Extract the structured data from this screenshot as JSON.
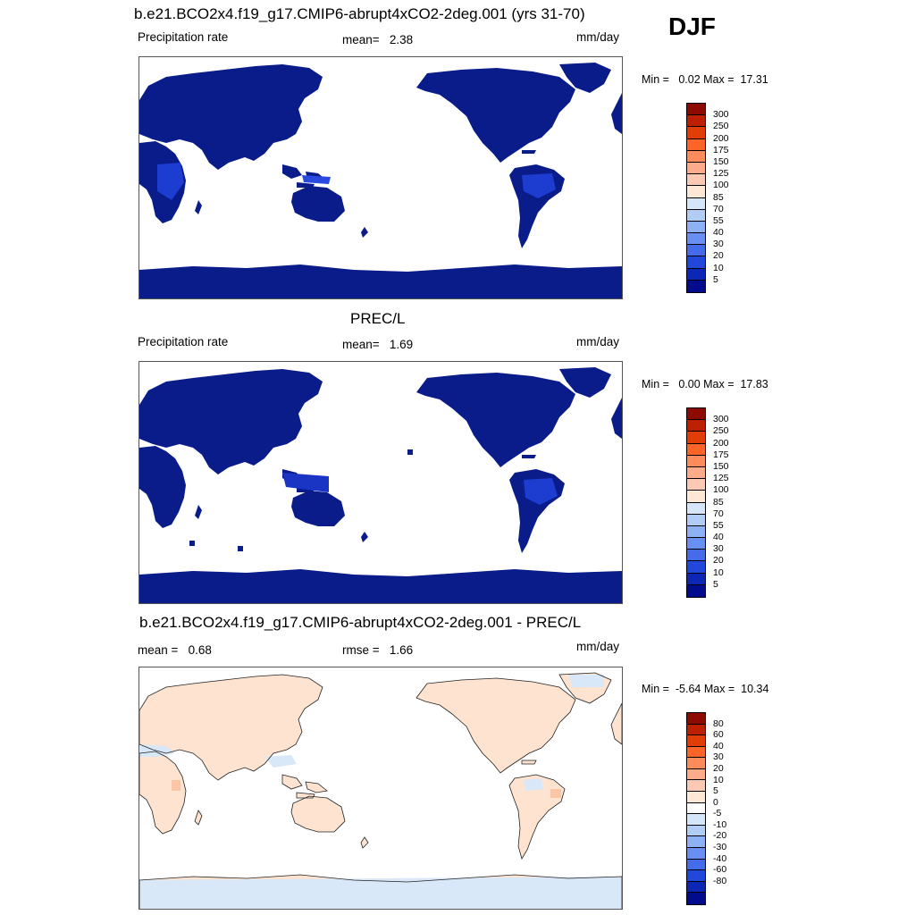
{
  "season": "DJF",
  "panels": [
    {
      "title": "b.e21.BCO2x4.f19_g17.CMIP6-abrupt4xCO2-2deg.001 (yrs 31-70)",
      "left": "Precipitation rate",
      "center": "mean=   2.38",
      "units": "mm/day",
      "minmax": "Min =   0.02 Max =  17.31",
      "fill": "#0a1b8a",
      "colorbar": {
        "colors": [
          "#8c0a00",
          "#bd2000",
          "#e23d06",
          "#fc6428",
          "#fd8b5c",
          "#fcac8a",
          "#fccab4",
          "#fde8d6",
          "#d4e6f7",
          "#b1cdf5",
          "#8eb0f4",
          "#6a8ff2",
          "#456bea",
          "#2247db",
          "#0c27b5",
          "#000c8b"
        ],
        "labels": [
          "300",
          "250",
          "200",
          "175",
          "150",
          "125",
          "100",
          "85",
          "70",
          "55",
          "40",
          "30",
          "20",
          "10",
          "5"
        ]
      }
    },
    {
      "title": "PREC/L",
      "left": "Precipitation rate",
      "center": "mean=   1.69",
      "units": "mm/day",
      "minmax": "Min =   0.00 Max =  17.83",
      "fill": "#0a1b8a",
      "colorbar": {
        "colors": [
          "#8c0a00",
          "#bd2000",
          "#e23d06",
          "#fc6428",
          "#fd8b5c",
          "#fcac8a",
          "#fccab4",
          "#fde8d6",
          "#d4e6f7",
          "#b1cdf5",
          "#8eb0f4",
          "#6a8ff2",
          "#456bea",
          "#2247db",
          "#0c27b5",
          "#000c8b"
        ],
        "labels": [
          "300",
          "250",
          "200",
          "175",
          "150",
          "125",
          "100",
          "85",
          "70",
          "55",
          "40",
          "30",
          "20",
          "10",
          "5"
        ]
      }
    },
    {
      "title": "b.e21.BCO2x4.f19_g17.CMIP6-abrupt4xCO2-2deg.001 - PREC/L",
      "left": "mean =   0.68",
      "center": "rmse =   1.66",
      "units": "mm/day",
      "minmax": "Min =  -5.64 Max =  10.34",
      "fill": "#fde3d0",
      "colorbar": {
        "colors": [
          "#8c0a00",
          "#bd2000",
          "#e23d06",
          "#fc6428",
          "#fd8b5c",
          "#fcac8a",
          "#fccab4",
          "#fde8d6",
          "#ffffff",
          "#d4e6f7",
          "#b1cdf5",
          "#8eb0f4",
          "#6a8ff2",
          "#456bea",
          "#2247db",
          "#0c27b5",
          "#000c8b"
        ],
        "labels": [
          "80",
          "60",
          "40",
          "30",
          "20",
          "10",
          "5",
          "0",
          "-5",
          "-10",
          "-20",
          "-30",
          "-40",
          "-60",
          "-80"
        ]
      }
    }
  ]
}
